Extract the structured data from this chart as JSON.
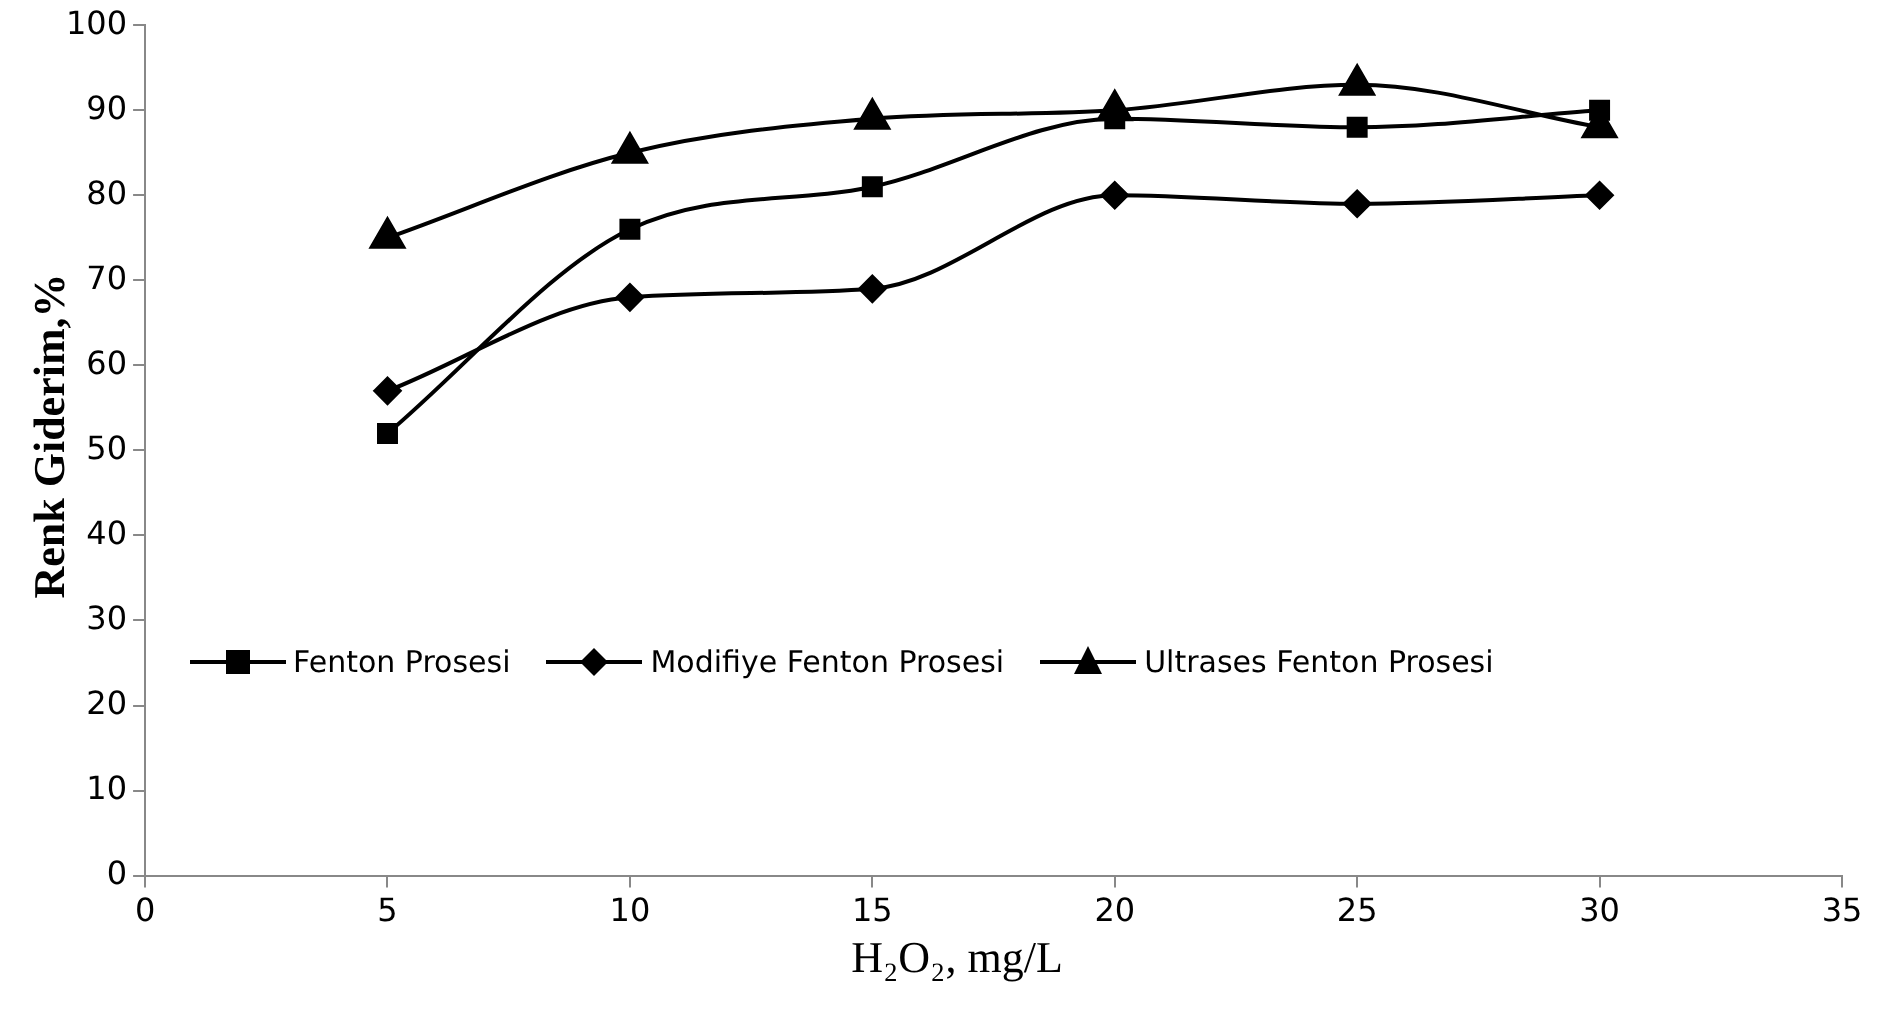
{
  "chart_data": {
    "type": "line",
    "xlabel": "H₂O₂, mg/L",
    "ylabel": "Renk Giderim,%",
    "x": [
      5,
      10,
      15,
      20,
      25,
      30
    ],
    "series": [
      {
        "name": "Fenton Prosesi",
        "color": "#000000",
        "marker": "square",
        "values": [
          52,
          76,
          81,
          89,
          88,
          90
        ]
      },
      {
        "name": "Modifiye Fenton Prosesi",
        "color": "#000000",
        "marker": "diamond",
        "values": [
          57,
          68,
          69,
          80,
          79,
          80
        ]
      },
      {
        "name": "Ultrases Fenton Prosesi",
        "color": "#000000",
        "marker": "triangle",
        "values": [
          75,
          85,
          89,
          90,
          93,
          88
        ]
      }
    ],
    "xlim": [
      0,
      35
    ],
    "xticks": [
      0,
      5,
      10,
      15,
      20,
      25,
      30,
      35
    ],
    "ylim": [
      0,
      100
    ],
    "yticks": [
      0,
      10,
      20,
      30,
      40,
      50,
      60,
      70,
      80,
      90,
      100
    ],
    "grid": false,
    "legend": "left"
  }
}
